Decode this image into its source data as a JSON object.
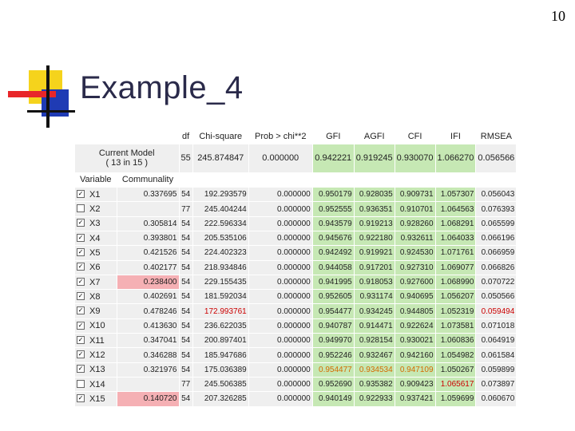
{
  "slide_number": "10",
  "title": "Example_4",
  "table": {
    "headers": [
      "df",
      "Chi-square",
      "Prob > chi**2",
      "GFI",
      "AGFI",
      "CFI",
      "IFI",
      "RMSEA"
    ],
    "current_model_line1": "Current Model",
    "current_model_line2": "( 13 in 15 )",
    "current": [
      "55",
      "245.874847",
      "0.000000",
      "0.942221",
      "0.919245",
      "0.930070",
      "1.066270",
      "0.056566"
    ],
    "variable_header": "Variable",
    "communality_header": "Communality",
    "rows": [
      {
        "label": "X1",
        "checked": true,
        "communality": "0.337695",
        "df": "54",
        "chisq": "192.293579",
        "prob": "0.000000",
        "gfi": "0.950179",
        "agfi": "0.928035",
        "cfi": "0.909731",
        "ifi": "1.057307",
        "rmsea": "0.056043"
      },
      {
        "label": "X2",
        "checked": false,
        "communality": "",
        "df": "77",
        "chisq": "245.404244",
        "prob": "0.000000",
        "gfi": "0.952555",
        "agfi": "0.936351",
        "cfi": "0.910701",
        "ifi": "1.064563",
        "rmsea": "0.076393"
      },
      {
        "label": "X3",
        "checked": true,
        "communality": "0.305814",
        "df": "54",
        "chisq": "222.596334",
        "prob": "0.000000",
        "gfi": "0.943579",
        "agfi": "0.919213",
        "cfi": "0.928260",
        "ifi": "1.068291",
        "rmsea": "0.065599"
      },
      {
        "label": "X4",
        "checked": true,
        "communality": "0.393801",
        "df": "54",
        "chisq": "205.535106",
        "prob": "0.000000",
        "gfi": "0.945676",
        "agfi": "0.922180",
        "cfi": "0.932611",
        "ifi": "1.064033",
        "rmsea": "0.066196"
      },
      {
        "label": "X5",
        "checked": true,
        "communality": "0.421526",
        "df": "54",
        "chisq": "224.402323",
        "prob": "0.000000",
        "gfi": "0.942492",
        "agfi": "0.919921",
        "cfi": "0.924530",
        "ifi": "1.071761",
        "rmsea": "0.066959"
      },
      {
        "label": "X6",
        "checked": true,
        "communality": "0.402177",
        "df": "54",
        "chisq": "218.934846",
        "prob": "0.000000",
        "gfi": "0.944058",
        "agfi": "0.917201",
        "cfi": "0.927310",
        "ifi": "1.069077",
        "rmsea": "0.066826"
      },
      {
        "label": "X7",
        "checked": true,
        "communality": "0.238400",
        "df": "54",
        "chisq": "229.155435",
        "prob": "0.000000",
        "gfi": "0.941995",
        "agfi": "0.918053",
        "cfi": "0.927600",
        "ifi": "1.068990",
        "rmsea": "0.070722"
      },
      {
        "label": "X8",
        "checked": true,
        "communality": "0.402691",
        "df": "54",
        "chisq": "181.592034",
        "prob": "0.000000",
        "gfi": "0.952605",
        "agfi": "0.931174",
        "cfi": "0.940695",
        "ifi": "1.056207",
        "rmsea": "0.050566"
      },
      {
        "label": "X9",
        "checked": true,
        "communality": "0.478246",
        "df": "54",
        "chisq": "172.993761",
        "prob": "0.000000",
        "gfi": "0.954477",
        "agfi": "0.934245",
        "cfi": "0.944805",
        "ifi": "1.052319",
        "rmsea": "0.059494"
      },
      {
        "label": "X10",
        "checked": true,
        "communality": "0.413630",
        "df": "54",
        "chisq": "236.622035",
        "prob": "0.000000",
        "gfi": "0.940787",
        "agfi": "0.914471",
        "cfi": "0.922624",
        "ifi": "1.073581",
        "rmsea": "0.071018"
      },
      {
        "label": "X11",
        "checked": true,
        "communality": "0.347041",
        "df": "54",
        "chisq": "200.897401",
        "prob": "0.000000",
        "gfi": "0.949970",
        "agfi": "0.928154",
        "cfi": "0.930021",
        "ifi": "1.060836",
        "rmsea": "0.064919"
      },
      {
        "label": "X12",
        "checked": true,
        "communality": "0.346288",
        "df": "54",
        "chisq": "185.947686",
        "prob": "0.000000",
        "gfi": "0.952246",
        "agfi": "0.932467",
        "cfi": "0.942160",
        "ifi": "1.054982",
        "rmsea": "0.061584"
      },
      {
        "label": "X13",
        "checked": true,
        "communality": "0.321976",
        "df": "54",
        "chisq": "175.036389",
        "prob": "0.000000",
        "gfi": "0.954477",
        "agfi": "0.934534",
        "cfi": "0.947109",
        "ifi": "1.050267",
        "rmsea": "0.059899"
      },
      {
        "label": "X14",
        "checked": false,
        "communality": "",
        "df": "77",
        "chisq": "245.506385",
        "prob": "0.000000",
        "gfi": "0.952690",
        "agfi": "0.935382",
        "cfi": "0.909423",
        "ifi": "1.065617",
        "rmsea": "0.073897"
      },
      {
        "label": "X15",
        "checked": true,
        "communality": "0.140720",
        "df": "54",
        "chisq": "207.326285",
        "prob": "0.000000",
        "gfi": "0.940149",
        "agfi": "0.922933",
        "cfi": "0.937421",
        "ifi": "1.059699",
        "rmsea": "0.060670"
      }
    ]
  },
  "colors": {
    "fit_green": "#c6e8b4",
    "highlight_pink": "#f5b0b4",
    "highlight_orange_text": "#d46a00",
    "highlight_red_text": "#cc0000",
    "title_text": "#2a2a4a",
    "logo_yellow": "#f5d31c",
    "logo_red": "#e8262a",
    "logo_blue": "#1f3bb4"
  }
}
